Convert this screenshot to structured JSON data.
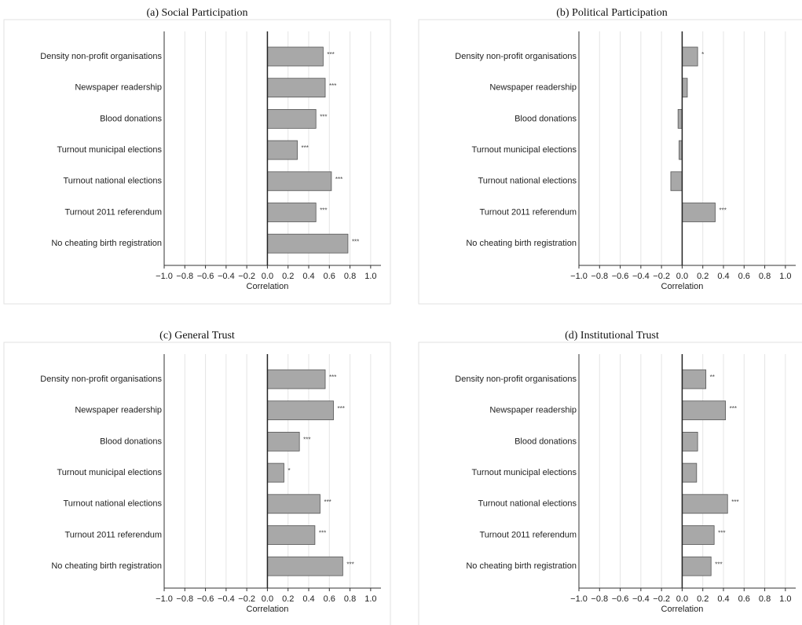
{
  "chart_data": [
    {
      "type": "barh",
      "title": "(a) Social Participation",
      "xlabel": "Correlation",
      "categories": [
        "Density non-profit organisations",
        "Newspaper readership",
        "Blood donations",
        "Turnout municipal elections",
        "Turnout national elections",
        "Turnout 2011 referendum",
        "No cheating birth registration"
      ],
      "values": [
        0.54,
        0.56,
        0.47,
        0.29,
        0.62,
        0.47,
        0.78
      ],
      "significance": [
        "***",
        "***",
        "***",
        "***",
        "***",
        "***",
        "***"
      ],
      "color": "#a8a8a8",
      "grid": true,
      "xlim": [
        -1.0,
        1.1
      ],
      "xticks": [
        {
          "value": -1.0,
          "label": "−1.0"
        },
        {
          "value": -0.8,
          "label": "−0.8"
        },
        {
          "value": -0.6,
          "label": "−0.6"
        },
        {
          "value": -0.4,
          "label": "−0.4"
        },
        {
          "value": -0.2,
          "label": "−0.2"
        },
        {
          "value": 0,
          "label": "0.0"
        },
        0.2,
        0.4,
        0.6,
        0.8,
        {
          "value": 1.0,
          "label": "1.0"
        }
      ]
    },
    {
      "type": "barh",
      "title": "(b) Political Participation",
      "xlabel": "Correlation",
      "categories": [
        "Density non-profit organisations",
        "Newspaper readership",
        "Blood donations",
        "Turnout municipal elections",
        "Turnout national elections",
        "Turnout 2011 referendum",
        "No cheating birth registration"
      ],
      "values": [
        0.15,
        0.05,
        -0.04,
        -0.03,
        -0.11,
        0.32,
        0.0
      ],
      "significance": [
        "*",
        null,
        null,
        null,
        null,
        "***",
        null
      ],
      "color": "#a8a8a8",
      "grid": true,
      "xlim": [
        -1.0,
        1.1
      ],
      "xticks": [
        {
          "value": -1.0,
          "label": "−1.0"
        },
        {
          "value": -0.8,
          "label": "−0.8"
        },
        {
          "value": -0.6,
          "label": "−0.6"
        },
        {
          "value": -0.4,
          "label": "−0.4"
        },
        {
          "value": -0.2,
          "label": "−0.2"
        },
        {
          "value": 0,
          "label": "0.0"
        },
        0.2,
        0.4,
        0.6,
        0.8,
        {
          "value": 1.0,
          "label": "1.0"
        }
      ]
    },
    {
      "type": "barh",
      "title": "(c) General Trust",
      "xlabel": "Correlation",
      "categories": [
        "Density non-profit organisations",
        "Newspaper readership",
        "Blood donations",
        "Turnout municipal elections",
        "Turnout national elections",
        "Turnout 2011 referendum",
        "No cheating birth registration"
      ],
      "values": [
        0.56,
        0.64,
        0.31,
        0.16,
        0.51,
        0.46,
        0.73
      ],
      "significance": [
        "***",
        "***",
        "***",
        "*",
        "***",
        "***",
        "***"
      ],
      "color": "#a8a8a8",
      "grid": true,
      "xlim": [
        -1.0,
        1.1
      ],
      "xticks": [
        {
          "value": -1.0,
          "label": "−1.0"
        },
        {
          "value": -0.8,
          "label": "−0.8"
        },
        {
          "value": -0.6,
          "label": "−0.6"
        },
        {
          "value": -0.4,
          "label": "−0.4"
        },
        {
          "value": -0.2,
          "label": "−0.2"
        },
        {
          "value": 0,
          "label": "0.0"
        },
        0.2,
        0.4,
        0.6,
        0.8,
        {
          "value": 1.0,
          "label": "1.0"
        }
      ]
    },
    {
      "type": "barh",
      "title": "(d) Institutional Trust",
      "xlabel": "Correlation",
      "categories": [
        "Density non-profit organisations",
        "Newspaper readership",
        "Blood donations",
        "Turnout municipal elections",
        "Turnout national elections",
        "Turnout 2011 referendum",
        "No cheating birth registration"
      ],
      "values": [
        0.23,
        0.42,
        0.15,
        0.14,
        0.44,
        0.31,
        0.28
      ],
      "significance": [
        "**",
        "***",
        null,
        null,
        "***",
        "***",
        "***"
      ],
      "color": "#a8a8a8",
      "grid": true,
      "xlim": [
        -1.0,
        1.1
      ],
      "xticks": [
        {
          "value": -1.0,
          "label": "−1.0"
        },
        {
          "value": -0.8,
          "label": "−0.8"
        },
        {
          "value": -0.6,
          "label": "−0.6"
        },
        {
          "value": -0.4,
          "label": "−0.4"
        },
        {
          "value": -0.2,
          "label": "−0.2"
        },
        {
          "value": 0,
          "label": "0.0"
        },
        0.2,
        0.4,
        0.6,
        0.8,
        {
          "value": 1.0,
          "label": "1.0"
        }
      ]
    }
  ]
}
